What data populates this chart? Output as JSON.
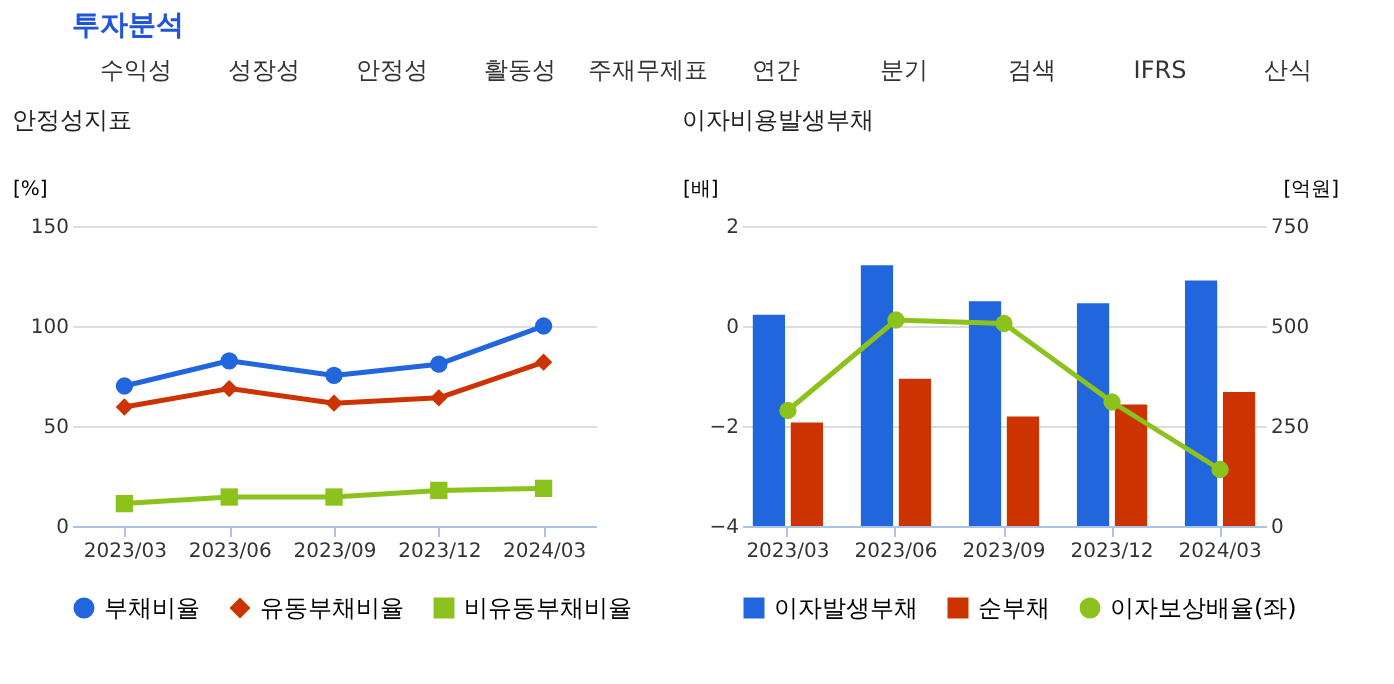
{
  "chart_data": [
    {
      "type": "other",
      "title": "투자분석",
      "annotations": [
        "수익성",
        "성장성",
        "안정성",
        "활동성",
        "주재무제표",
        "연간",
        "분기",
        "검색",
        "IFRS",
        "산식"
      ]
    },
    {
      "type": "line",
      "title": "안정성지표",
      "ylabel": "[%]",
      "categories": [
        "2023/03",
        "2023/06",
        "2023/09",
        "2023/12",
        "2024/03"
      ],
      "ylim": [
        0,
        150
      ],
      "yticks": [
        0,
        50,
        100,
        150
      ],
      "grid": "y",
      "legend": "bottom",
      "series": [
        {
          "name": "부채비율",
          "color": "#2166dd",
          "marker": "circle",
          "values": [
            70,
            82.6,
            75.3,
            80.9,
            100
          ]
        },
        {
          "name": "유동부채비율",
          "color": "#cc3300",
          "marker": "diamond",
          "values": [
            59.5,
            68.7,
            61.4,
            64.1,
            81.9
          ]
        },
        {
          "name": "비유동부채비율",
          "color": "#8cc21c",
          "marker": "square",
          "values": [
            11.2,
            14.5,
            14.5,
            17.8,
            18.8
          ]
        }
      ]
    },
    {
      "type": "bar",
      "title": "이자비용발생부채",
      "ylabel": "[배]",
      "y2label": "[억원]",
      "categories": [
        "2023/03",
        "2023/06",
        "2023/09",
        "2023/12",
        "2024/03"
      ],
      "ylim": [
        -4,
        2
      ],
      "yticks": [
        -4,
        -2,
        0,
        2
      ],
      "y2lim": [
        0,
        750
      ],
      "y2ticks": [
        0,
        250,
        500,
        750
      ],
      "grid": "y",
      "legend": "bottom",
      "series": [
        {
          "name": "이자발생부채",
          "color": "#2166dd",
          "axis": "y2",
          "values": [
            528,
            652,
            562,
            557,
            614
          ]
        },
        {
          "name": "순부채",
          "color": "#cc3300",
          "axis": "y2",
          "values": [
            259,
            368,
            274,
            304,
            335
          ]
        },
        {
          "name": "이자보상배율(좌)",
          "color": "#8cc21c",
          "type": "line",
          "marker": "circle",
          "axis": "y",
          "values": [
            -1.69,
            0.12,
            0.05,
            -1.52,
            -2.87
          ]
        }
      ]
    }
  ]
}
